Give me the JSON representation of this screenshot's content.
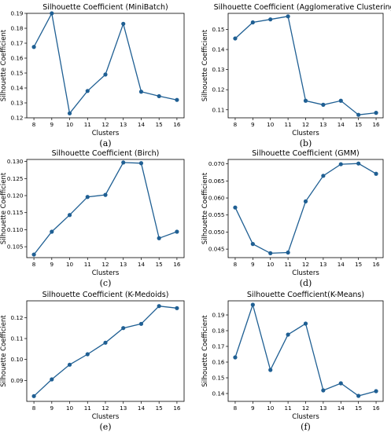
{
  "colors": {
    "series": "#1f5f93",
    "axis": "#000000",
    "background": "#ffffff"
  },
  "chart_data": [
    {
      "type": "line",
      "title": "Silhouette Coefficient (MiniBatch)",
      "xlabel": "Clusters",
      "ylabel": "Silhouette Coefficient",
      "caption": "(a)",
      "x": [
        8,
        9,
        10,
        11,
        12,
        13,
        14,
        15,
        16
      ],
      "values": [
        0.1675,
        0.19,
        0.123,
        0.138,
        0.149,
        0.183,
        0.1375,
        0.1345,
        0.132
      ],
      "ylim": [
        0.12,
        0.19
      ],
      "yticks": [
        0.12,
        0.13,
        0.14,
        0.15,
        0.16,
        0.17,
        0.18,
        0.19
      ],
      "ytick_labels": [
        "0.12",
        "0.13",
        "0.14",
        "0.15",
        "0.16",
        "0.17",
        "0.18",
        "0.19"
      ],
      "grid": false
    },
    {
      "type": "line",
      "title": "Silhouette Coefficient (Agglomerative Clustering)",
      "xlabel": "Clusters",
      "ylabel": "Silhouette Coefficient",
      "caption": "(b)",
      "x": [
        8,
        9,
        10,
        11,
        12,
        13,
        14,
        15,
        16
      ],
      "values": [
        0.1455,
        0.1535,
        0.155,
        0.1565,
        0.1145,
        0.1125,
        0.1145,
        0.1075,
        0.1085
      ],
      "ylim": [
        0.106,
        0.158
      ],
      "yticks": [
        0.11,
        0.12,
        0.13,
        0.14,
        0.15
      ],
      "ytick_labels": [
        "0.11",
        "0.12",
        "0.13",
        "0.14",
        "0.15"
      ],
      "grid": false
    },
    {
      "type": "line",
      "title": "Silhouette Coefficient (Birch)",
      "xlabel": "Clusters",
      "ylabel": "Silhouette Coefficient",
      "caption": "(c)",
      "x": [
        8,
        9,
        10,
        11,
        12,
        13,
        14,
        15,
        16
      ],
      "values": [
        0.1027,
        0.1094,
        0.1143,
        0.1196,
        0.1202,
        0.1297,
        0.1295,
        0.1075,
        0.1094
      ],
      "ylim": [
        0.1018,
        0.1306
      ],
      "yticks": [
        0.105,
        0.11,
        0.115,
        0.12,
        0.125,
        0.13
      ],
      "ytick_labels": [
        "0.105",
        "0.110",
        "0.115",
        "0.120",
        "0.125",
        "0.130"
      ],
      "grid": false
    },
    {
      "type": "line",
      "title": "Silhouette Coefficient (GMM)",
      "xlabel": "Clusters",
      "ylabel": "Silhouette Coefficient",
      "caption": "(d)",
      "x": [
        8,
        9,
        10,
        11,
        12,
        13,
        14,
        15,
        16
      ],
      "values": [
        0.0572,
        0.0465,
        0.0438,
        0.044,
        0.059,
        0.0665,
        0.0699,
        0.0701,
        0.0671
      ],
      "ylim": [
        0.0425,
        0.0713
      ],
      "yticks": [
        0.045,
        0.05,
        0.055,
        0.06,
        0.065,
        0.07
      ],
      "ytick_labels": [
        "0.045",
        "0.050",
        "0.055",
        "0.060",
        "0.065",
        "0.070"
      ],
      "grid": false
    },
    {
      "type": "line",
      "title": "Silhouette Coefficient (K-Medoids)",
      "xlabel": "Clusters",
      "ylabel": "Silhouette Coefficient",
      "caption": "(e)",
      "x": [
        8,
        9,
        10,
        11,
        12,
        13,
        14,
        15,
        16
      ],
      "values": [
        0.0825,
        0.0905,
        0.0975,
        0.1025,
        0.108,
        0.115,
        0.117,
        0.1255,
        0.1245
      ],
      "ylim": [
        0.08,
        0.128
      ],
      "yticks": [
        0.09,
        0.1,
        0.11,
        0.12
      ],
      "ytick_labels": [
        "0.09",
        "0.10",
        "0.11",
        "0.12"
      ],
      "grid": false
    },
    {
      "type": "line",
      "title": "Silhouette Coefficient(K-Means)",
      "xlabel": "Clusters",
      "ylabel": "Silhouette Coefficient",
      "caption": "(f)",
      "x": [
        8,
        9,
        10,
        11,
        12,
        13,
        14,
        15,
        16
      ],
      "values": [
        0.163,
        0.1965,
        0.155,
        0.1775,
        0.1845,
        0.142,
        0.1465,
        0.1385,
        0.1415
      ],
      "ylim": [
        0.135,
        0.199
      ],
      "yticks": [
        0.14,
        0.15,
        0.16,
        0.17,
        0.18,
        0.19
      ],
      "ytick_labels": [
        "0.14",
        "0.15",
        "0.16",
        "0.17",
        "0.18",
        "0.19"
      ],
      "grid": false
    }
  ]
}
